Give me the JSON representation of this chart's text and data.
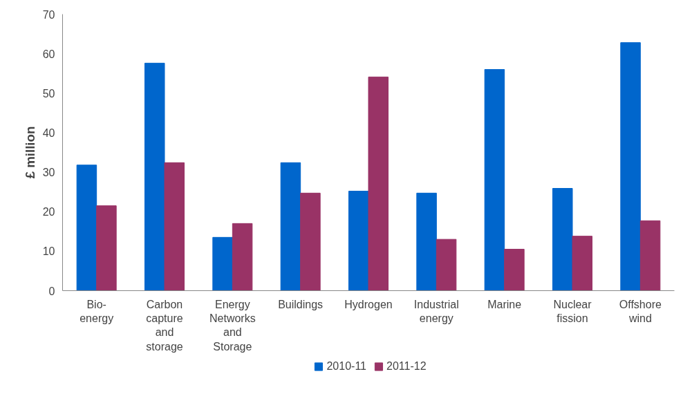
{
  "chart_data": {
    "type": "bar",
    "ylabel": "£ million",
    "categories": [
      "Bio-energy",
      "Carbon capture and storage",
      "Energy Networks and Storage",
      "Buildings",
      "Hydrogen",
      "Industrial energy",
      "Marine",
      "Nuclear fission",
      "Offshore wind"
    ],
    "series": [
      {
        "name": "2010-11",
        "color": "#0066cc",
        "values": [
          31.8,
          57.6,
          13.5,
          32.4,
          25.2,
          24.7,
          56.0,
          25.9,
          62.8
        ]
      },
      {
        "name": "2011-12",
        "color": "#993366",
        "values": [
          21.5,
          32.4,
          17.0,
          24.7,
          54.1,
          13.0,
          10.5,
          13.8,
          17.7
        ]
      }
    ],
    "ylim": [
      0,
      70
    ],
    "yticks": [
      0,
      10,
      20,
      30,
      40,
      50,
      60,
      70
    ],
    "grid": false,
    "legend": "bottom"
  }
}
